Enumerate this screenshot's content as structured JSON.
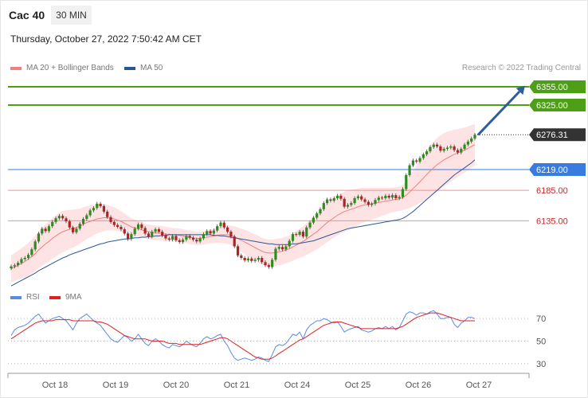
{
  "header": {
    "instrument": "Cac 40",
    "timeframe": "30 MIN",
    "datetime": "Thursday, October 27, 2022 7:50:42 AM CET"
  },
  "legend": {
    "ma20": {
      "label": "MA 20 + Bollinger Bands",
      "color": "#f08080"
    },
    "ma50": {
      "label": "MA 50",
      "color": "#2b5797"
    },
    "credit": "Research © 2022 Trading Central"
  },
  "rsi_legend": {
    "rsi": {
      "label": "RSI",
      "color": "#5b8ae6"
    },
    "ma9": {
      "label": "9MA",
      "color": "#dd2222"
    }
  },
  "colors": {
    "up": "#2e8b1e",
    "down": "#b22222",
    "resistance": "#4c9f16",
    "support": "#f09090",
    "pivot": "#3a7be0",
    "current": "#333333",
    "arrow": "#2f5d9a"
  },
  "chart_data": [
    {
      "type": "candlestick",
      "ylim": [
        6040,
        6372
      ],
      "x_ticks": [
        "Oct 18",
        "Oct 19",
        "Oct 20",
        "Oct 21",
        "Oct 24",
        "Oct 25",
        "Oct 26",
        "Oct 27"
      ],
      "levels": [
        {
          "value": 6355.0,
          "label": "6355.00",
          "role": "resistance"
        },
        {
          "value": 6325.0,
          "label": "6325.00",
          "role": "resistance"
        },
        {
          "value": 6276.31,
          "label": "6276.31",
          "role": "current"
        },
        {
          "value": 6219.0,
          "label": "6219.00",
          "role": "pivot"
        },
        {
          "value": 6185.0,
          "label": "6185.00",
          "role": "support"
        },
        {
          "value": 6135.0,
          "label": "6135.00",
          "role": "support"
        }
      ],
      "close": [
        6060,
        6062,
        6066,
        6072,
        6074,
        6079,
        6088,
        6101,
        6114,
        6122,
        6118,
        6126,
        6133,
        6139,
        6143,
        6139,
        6134,
        6124,
        6116,
        6122,
        6130,
        6138,
        6144,
        6152,
        6156,
        6163,
        6159,
        6150,
        6141,
        6133,
        6128,
        6125,
        6121,
        6114,
        6105,
        6113,
        6122,
        6129,
        6123,
        6114,
        6109,
        6117,
        6121,
        6117,
        6111,
        6106,
        6104,
        6110,
        6103,
        6100,
        6104,
        6110,
        6107,
        6104,
        6101,
        6106,
        6113,
        6118,
        6114,
        6119,
        6126,
        6132,
        6124,
        6117,
        6109,
        6093,
        6078,
        6074,
        6070,
        6073,
        6069,
        6071,
        6074,
        6067,
        6062,
        6059,
        6071,
        6089,
        6092,
        6088,
        6093,
        6102,
        6113,
        6112,
        6117,
        6109,
        6124,
        6132,
        6140,
        6147,
        6154,
        6164,
        6170,
        6168,
        6172,
        6176,
        6171,
        6158,
        6161,
        6164,
        6172,
        6175,
        6170,
        6166,
        6161,
        6163,
        6169,
        6173,
        6172,
        6176,
        6173,
        6177,
        6172,
        6174,
        6187,
        6210,
        6226,
        6234,
        6232,
        6238,
        6244,
        6249,
        6256,
        6260,
        6257,
        6250,
        6253,
        6255,
        6257,
        6251,
        6247,
        6253,
        6260,
        6265,
        6270,
        6276
      ],
      "ma20": [
        6056,
        6059,
        6062,
        6065,
        6068,
        6072,
        6076,
        6081,
        6087,
        6092,
        6097,
        6101,
        6106,
        6110,
        6114,
        6117,
        6119,
        6121,
        6122,
        6124,
        6126,
        6129,
        6132,
        6134,
        6136,
        6138,
        6139,
        6140,
        6140,
        6139,
        6138,
        6136,
        6134,
        6131,
        6128,
        6125,
        6123,
        6122,
        6120,
        6118,
        6117,
        6116,
        6115,
        6115,
        6114,
        6113,
        6113,
        6112,
        6112,
        6111,
        6110,
        6109,
        6108,
        6107,
        6106,
        6106,
        6107,
        6108,
        6109,
        6110,
        6111,
        6112,
        6112,
        6112,
        6111,
        6109,
        6106,
        6103,
        6100,
        6097,
        6094,
        6091,
        6088,
        6085,
        6083,
        6082,
        6082,
        6083,
        6084,
        6085,
        6087,
        6089,
        6092,
        6095,
        6098,
        6101,
        6105,
        6109,
        6113,
        6117,
        6122,
        6127,
        6132,
        6136,
        6140,
        6144,
        6147,
        6150,
        6152,
        6154,
        6156,
        6158,
        6160,
        6161,
        6162,
        6163,
        6164,
        6165,
        6166,
        6167,
        6168,
        6169,
        6170,
        6171,
        6173,
        6177,
        6182,
        6188,
        6193,
        6199,
        6205,
        6211,
        6217,
        6222,
        6227,
        6231,
        6235,
        6238,
        6241,
        6244,
        6246,
        6249,
        6251,
        6254,
        6257,
        6260
      ],
      "ma50": [
        6028,
        6031,
        6034,
        6037,
        6040,
        6043,
        6046,
        6049,
        6053,
        6056,
        6059,
        6062,
        6065,
        6068,
        6071,
        6074,
        6076,
        6079,
        6081,
        6083,
        6085,
        6087,
        6089,
        6091,
        6093,
        6095,
        6097,
        6098,
        6100,
        6101,
        6102,
        6103,
        6104,
        6105,
        6105,
        6106,
        6107,
        6107,
        6108,
        6108,
        6109,
        6109,
        6110,
        6110,
        6111,
        6111,
        6112,
        6112,
        6112,
        6112,
        6112,
        6112,
        6112,
        6112,
        6112,
        6112,
        6112,
        6112,
        6112,
        6111,
        6111,
        6110,
        6110,
        6109,
        6108,
        6107,
        6106,
        6105,
        6104,
        6103,
        6102,
        6101,
        6100,
        6099,
        6098,
        6097,
        6097,
        6096,
        6096,
        6096,
        6096,
        6096,
        6097,
        6097,
        6098,
        6099,
        6100,
        6101,
        6102,
        6104,
        6106,
        6108,
        6110,
        6112,
        6114,
        6116,
        6118,
        6120,
        6122,
        6123,
        6124,
        6125,
        6126,
        6127,
        6128,
        6129,
        6130,
        6131,
        6132,
        6133,
        6134,
        6135,
        6136,
        6137,
        6139,
        6142,
        6146,
        6150,
        6155,
        6160,
        6165,
        6170,
        6175,
        6180,
        6185,
        6190,
        6195,
        6200,
        6205,
        6210,
        6214,
        6218,
        6222,
        6226,
        6230,
        6235
      ],
      "band_half_width": [
        22,
        23,
        24,
        25,
        26,
        27,
        28,
        29,
        30,
        31,
        32,
        33,
        33,
        34,
        34,
        34,
        33,
        32,
        31,
        30,
        29,
        28,
        27,
        26,
        25,
        24,
        23,
        22,
        21,
        20,
        19,
        18,
        17,
        16,
        15,
        14,
        14,
        13,
        13,
        12,
        12,
        12,
        12,
        12,
        12,
        12,
        11,
        11,
        11,
        11,
        11,
        11,
        11,
        11,
        11,
        11,
        11,
        11,
        11,
        12,
        12,
        13,
        14,
        15,
        16,
        17,
        18,
        19,
        20,
        21,
        21,
        22,
        22,
        22,
        22,
        22,
        22,
        22,
        22,
        22,
        22,
        22,
        23,
        23,
        24,
        25,
        26,
        27,
        28,
        29,
        30,
        31,
        32,
        32,
        33,
        33,
        33,
        33,
        33,
        32,
        31,
        30,
        29,
        28,
        27,
        26,
        25,
        24,
        23,
        22,
        21,
        20,
        20,
        20,
        21,
        23,
        26,
        29,
        32,
        35,
        38,
        40,
        42,
        43,
        44,
        44,
        44,
        43,
        42,
        41,
        39,
        38,
        37,
        36,
        35,
        34
      ]
    },
    {
      "type": "line",
      "name": "RSI",
      "ylim": [
        25,
        80
      ],
      "y_ticks": [
        70,
        50,
        30
      ],
      "rsi": [
        55,
        60,
        62,
        63,
        64,
        66,
        69,
        72,
        74,
        70,
        66,
        68,
        70,
        71,
        72,
        70,
        68,
        64,
        60,
        66,
        70,
        72,
        74,
        71,
        68,
        66,
        64,
        60,
        56,
        52,
        50,
        49,
        52,
        55,
        53,
        50,
        52,
        56,
        52,
        48,
        46,
        50,
        52,
        50,
        47,
        45,
        44,
        47,
        46,
        45,
        47,
        50,
        48,
        46,
        45,
        48,
        52,
        54,
        52,
        53,
        55,
        56,
        50,
        46,
        40,
        35,
        33,
        34,
        35,
        34,
        33,
        34,
        36,
        35,
        33,
        32,
        38,
        45,
        47,
        46,
        48,
        52,
        56,
        55,
        58,
        52,
        60,
        64,
        66,
        68,
        68,
        70,
        69,
        67,
        66,
        67,
        63,
        58,
        60,
        61,
        62,
        63,
        60,
        59,
        58,
        59,
        61,
        62,
        61,
        63,
        61,
        63,
        60,
        62,
        68,
        74,
        76,
        75,
        73,
        75,
        75,
        74,
        76,
        77,
        74,
        70,
        70,
        71,
        71,
        65,
        62,
        66,
        68,
        71,
        71,
        70
      ],
      "ma9": [
        52,
        54,
        56,
        58,
        60,
        62,
        64,
        66,
        67,
        68,
        68,
        68,
        68,
        69,
        69,
        69,
        69,
        69,
        68,
        68,
        68,
        68,
        68,
        68,
        68,
        67,
        67,
        66,
        65,
        63,
        61,
        59,
        57,
        55,
        54,
        53,
        52,
        52,
        52,
        52,
        51,
        50,
        50,
        50,
        50,
        49,
        48,
        48,
        48,
        47,
        47,
        47,
        47,
        47,
        47,
        47,
        48,
        49,
        50,
        51,
        52,
        53,
        53,
        52,
        50,
        48,
        46,
        44,
        42,
        40,
        38,
        36,
        35,
        34,
        34,
        34,
        35,
        37,
        39,
        41,
        43,
        45,
        47,
        49,
        51,
        52,
        54,
        56,
        58,
        60,
        62,
        64,
        65,
        66,
        67,
        67,
        67,
        66,
        65,
        64,
        63,
        62,
        61,
        61,
        61,
        61,
        61,
        61,
        61,
        61,
        61,
        61,
        61,
        62,
        63,
        65,
        67,
        69,
        71,
        72,
        73,
        74,
        75,
        75,
        75,
        74,
        73,
        72,
        71,
        70,
        69,
        68,
        68,
        68,
        68,
        68
      ]
    }
  ]
}
